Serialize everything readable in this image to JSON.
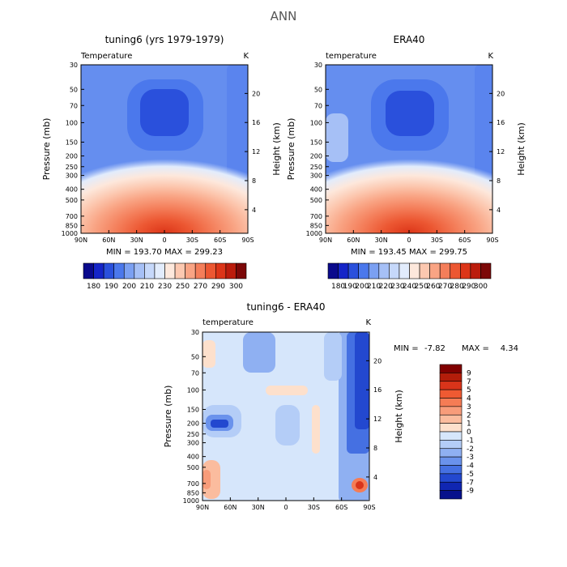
{
  "figure_title": "ANN",
  "chart_data": [
    {
      "type": "heatmap",
      "title": "tuning6 (yrs 1979-1979)",
      "subtitle_left": "Temperature",
      "subtitle_right": "K",
      "ylabel": "Pressure (mb)",
      "ylabel_right": "Height (km)",
      "x_ticks": [
        "90N",
        "60N",
        "30N",
        "0",
        "30S",
        "60S",
        "90S"
      ],
      "y_ticks": [
        "30",
        "50",
        "70",
        "100",
        "150",
        "200",
        "250",
        "300",
        "400",
        "500",
        "700",
        "850",
        "1000"
      ],
      "y_ticks_right": [
        "20",
        "16",
        "12",
        "8",
        "4"
      ],
      "stats": "MIN = 193.70  MAX = 299.23",
      "colorbar_labels": [
        "180",
        "190",
        "200",
        "210",
        "230",
        "250",
        "270",
        "290",
        "300"
      ],
      "colorbar_colors": [
        "#0a0a8c",
        "#1525c8",
        "#2a50dc",
        "#4b78ec",
        "#7ba0f2",
        "#a6c0f6",
        "#c6d8fa",
        "#e2ecfc",
        "#fde8dc",
        "#fcc8b0",
        "#f9a484",
        "#f47e5a",
        "#ec5732",
        "#dc3518",
        "#bb1c0c",
        "#7c0808"
      ]
    },
    {
      "type": "heatmap",
      "title": "ERA40",
      "subtitle_left": "temperature",
      "subtitle_right": "K",
      "ylabel": "Pressure (mb)",
      "ylabel_right": "Height (km)",
      "x_ticks": [
        "90N",
        "60N",
        "30N",
        "0",
        "30S",
        "60S",
        "90S"
      ],
      "y_ticks": [
        "30",
        "50",
        "70",
        "100",
        "150",
        "200",
        "250",
        "300",
        "400",
        "500",
        "700",
        "850",
        "1000"
      ],
      "y_ticks_right": [
        "20",
        "16",
        "12",
        "8",
        "4"
      ],
      "stats": "MIN = 193.45  MAX = 299.75",
      "colorbar_labels": [
        "180",
        "190",
        "200",
        "210",
        "220",
        "230",
        "240",
        "250",
        "260",
        "270",
        "280",
        "290",
        "300"
      ],
      "colorbar_colors": [
        "#0a0a8c",
        "#1525c8",
        "#2a50dc",
        "#4b78ec",
        "#7ba0f2",
        "#a6c0f6",
        "#c6d8fa",
        "#e2ecfc",
        "#fde8dc",
        "#fcc8b0",
        "#f9a484",
        "#f47e5a",
        "#ec5732",
        "#dc3518",
        "#bb1c0c",
        "#7c0808"
      ]
    },
    {
      "type": "heatmap",
      "title": "tuning6 - ERA40",
      "subtitle_left": "temperature",
      "subtitle_right": "K",
      "ylabel": "Pressure (mb)",
      "ylabel_right": "Height (km)",
      "x_ticks": [
        "90N",
        "60N",
        "30N",
        "0",
        "30S",
        "60S",
        "90S"
      ],
      "y_ticks": [
        "30",
        "50",
        "70",
        "100",
        "150",
        "200",
        "250",
        "300",
        "400",
        "500",
        "700",
        "850",
        "1000"
      ],
      "y_ticks_right": [
        "20",
        "16",
        "12",
        "8",
        "4"
      ],
      "stat_min_label": "MIN =",
      "stat_min": "-7.82",
      "stat_max_label": "MAX =",
      "stat_max": "4.34",
      "colorbar_labels": [
        "9",
        "7",
        "5",
        "4",
        "3",
        "2",
        "1",
        "0",
        "-1",
        "-2",
        "-3",
        "-4",
        "-5",
        "-7",
        "-9"
      ],
      "colorbar_colors": [
        "#800000",
        "#b31d0a",
        "#d9341a",
        "#ef5a32",
        "#f57c55",
        "#f89c7a",
        "#fbbc9e",
        "#fde0cc",
        "#d6e6fb",
        "#b4cdf7",
        "#8fb0f2",
        "#6a92ec",
        "#4570e2",
        "#2348cf",
        "#1026b2",
        "#07118c"
      ]
    }
  ]
}
